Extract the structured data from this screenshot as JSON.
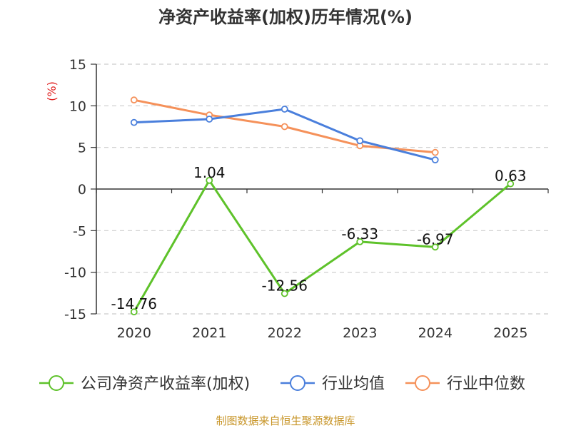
{
  "chart_data": {
    "type": "line",
    "title": "净资产收益率(加权)历年情况(%)",
    "y_unit": "(%)",
    "categories": [
      "2020",
      "2021",
      "2022",
      "2023",
      "2024",
      "2025"
    ],
    "ylim": [
      -15,
      15
    ],
    "yticks": [
      15,
      10,
      5,
      0,
      -5,
      -10,
      -15
    ],
    "grid": true,
    "legend_position": "bottom",
    "series": [
      {
        "name": "公司净资产收益率(加权)",
        "color": "#5ec22a",
        "values": [
          -14.76,
          1.04,
          -12.56,
          -6.33,
          -6.97,
          0.63
        ],
        "labels": [
          "-14.76",
          "1.04",
          "-12.56",
          "-6.33",
          "-6.97",
          "0.63"
        ]
      },
      {
        "name": "行业均值",
        "color": "#4a7fdc",
        "values": [
          8.0,
          8.4,
          9.6,
          5.8,
          3.5,
          null
        ]
      },
      {
        "name": "行业中位数",
        "color": "#f5915a",
        "values": [
          10.7,
          8.9,
          7.5,
          5.2,
          4.4,
          null
        ]
      }
    ]
  },
  "source": "制图数据来自恒生聚源数据库"
}
